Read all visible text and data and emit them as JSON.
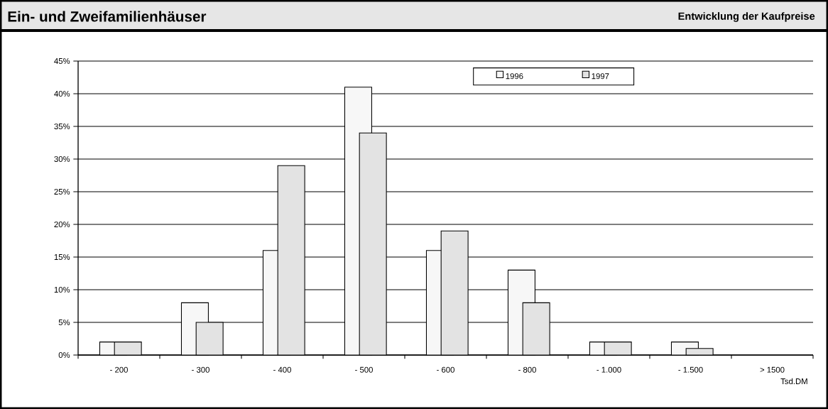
{
  "chart_data": {
    "type": "bar",
    "title": "Ein- und Zweifamilienhäuser",
    "subtitle": "Entwicklung der Kaufpreise",
    "xlabel": "Tsd.DM",
    "categories": [
      "- 200",
      "- 300",
      "- 400",
      "- 500",
      "- 600",
      "- 800",
      "- 1.000",
      "- 1.500",
      "> 1500"
    ],
    "series": [
      {
        "name": "1996",
        "color": "#f7f7f7",
        "values": [
          2,
          8,
          16,
          41,
          16,
          13,
          2,
          2,
          null
        ]
      },
      {
        "name": "1997",
        "color": "#e3e3e3",
        "values": [
          2,
          5,
          29,
          34,
          19,
          8,
          2,
          1,
          null
        ]
      }
    ],
    "ylim": [
      0,
      45
    ],
    "yticks": [
      {
        "value": 0,
        "label": "0%"
      },
      {
        "value": 5,
        "label": "5%"
      },
      {
        "value": 10,
        "label": "10%"
      },
      {
        "value": 15,
        "label": "15%"
      },
      {
        "value": 20,
        "label": "20%"
      },
      {
        "value": 25,
        "label": "25%"
      },
      {
        "value": 30,
        "label": "30%"
      },
      {
        "value": 35,
        "label": "35%"
      },
      {
        "value": 40,
        "label": "40%"
      },
      {
        "value": 45,
        "label": "45%"
      }
    ],
    "grid": "y",
    "legend": "top"
  }
}
